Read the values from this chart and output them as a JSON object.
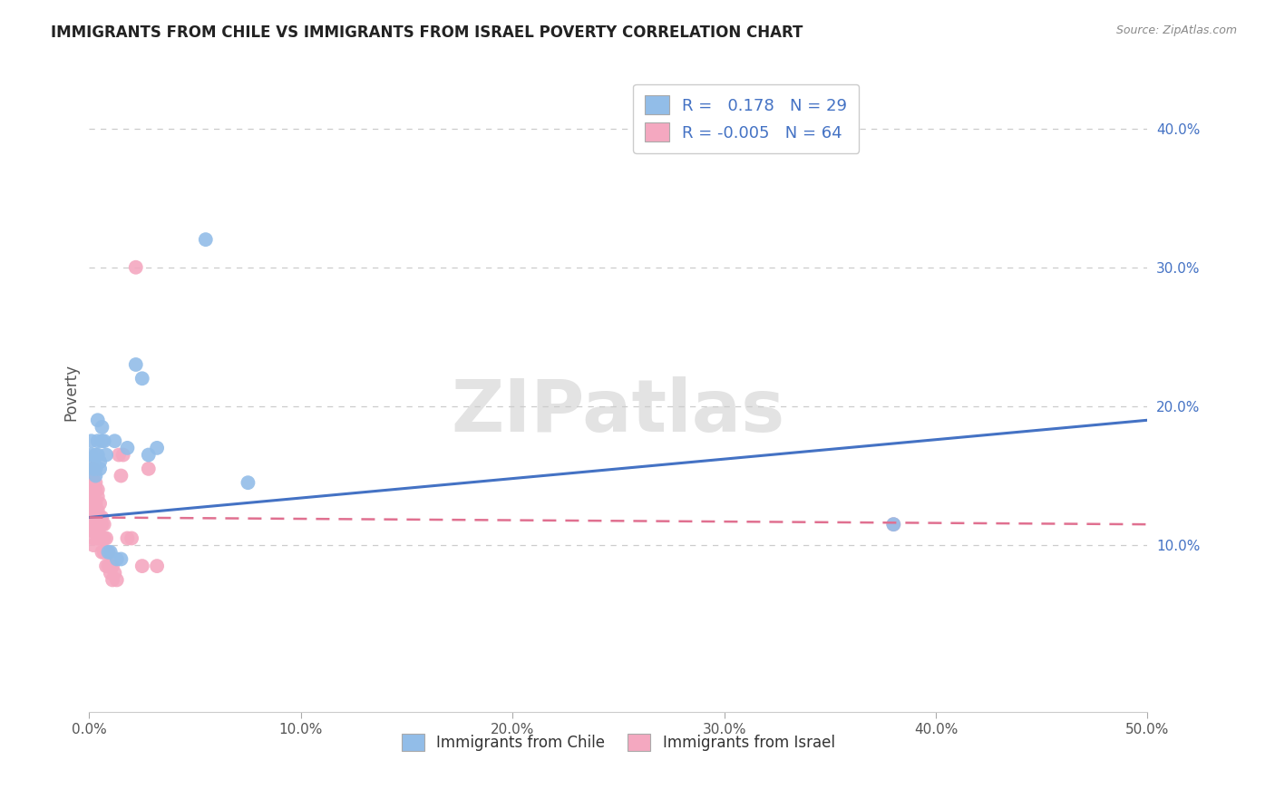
{
  "title": "IMMIGRANTS FROM CHILE VS IMMIGRANTS FROM ISRAEL POVERTY CORRELATION CHART",
  "source": "Source: ZipAtlas.com",
  "xlabel": "",
  "ylabel": "Poverty",
  "xlim": [
    0,
    0.5
  ],
  "ylim": [
    -0.02,
    0.44
  ],
  "xtick_positions": [
    0.0,
    0.1,
    0.2,
    0.3,
    0.4,
    0.5
  ],
  "xtick_labels": [
    "0.0%",
    "10.0%",
    "20.0%",
    "30.0%",
    "40.0%",
    "50.0%"
  ],
  "ytick_vals": [
    0.1,
    0.2,
    0.3,
    0.4
  ],
  "chile_color": "#92BDE8",
  "israel_color": "#F4A8C0",
  "chile_line_color": "#4472C4",
  "israel_line_color": "#E07090",
  "chile_R": 0.178,
  "chile_N": 29,
  "israel_R": -0.005,
  "israel_N": 64,
  "background_color": "#FFFFFF",
  "grid_color": "#CCCCCC",
  "watermark": "ZIPatlas",
  "chile_scatter_x": [
    0.001,
    0.001,
    0.002,
    0.002,
    0.003,
    0.003,
    0.003,
    0.004,
    0.004,
    0.004,
    0.005,
    0.005,
    0.006,
    0.006,
    0.007,
    0.008,
    0.009,
    0.01,
    0.012,
    0.013,
    0.015,
    0.018,
    0.022,
    0.025,
    0.028,
    0.032,
    0.055,
    0.075,
    0.38
  ],
  "chile_scatter_y": [
    0.175,
    0.165,
    0.16,
    0.155,
    0.165,
    0.155,
    0.15,
    0.175,
    0.165,
    0.19,
    0.16,
    0.155,
    0.185,
    0.175,
    0.175,
    0.165,
    0.095,
    0.095,
    0.175,
    0.09,
    0.09,
    0.17,
    0.23,
    0.22,
    0.165,
    0.17,
    0.32,
    0.145,
    0.115
  ],
  "israel_scatter_x": [
    0.001,
    0.001,
    0.001,
    0.001,
    0.001,
    0.001,
    0.001,
    0.001,
    0.002,
    0.002,
    0.002,
    0.002,
    0.002,
    0.002,
    0.002,
    0.002,
    0.002,
    0.002,
    0.002,
    0.002,
    0.003,
    0.003,
    0.003,
    0.003,
    0.003,
    0.003,
    0.004,
    0.004,
    0.004,
    0.004,
    0.004,
    0.004,
    0.005,
    0.005,
    0.005,
    0.005,
    0.006,
    0.006,
    0.006,
    0.006,
    0.007,
    0.007,
    0.007,
    0.008,
    0.008,
    0.008,
    0.009,
    0.009,
    0.01,
    0.01,
    0.011,
    0.011,
    0.012,
    0.013,
    0.014,
    0.015,
    0.016,
    0.018,
    0.02,
    0.022,
    0.025,
    0.028,
    0.032,
    0.38
  ],
  "israel_scatter_y": [
    0.155,
    0.15,
    0.145,
    0.14,
    0.135,
    0.13,
    0.125,
    0.12,
    0.155,
    0.15,
    0.145,
    0.14,
    0.135,
    0.13,
    0.125,
    0.12,
    0.115,
    0.11,
    0.105,
    0.1,
    0.145,
    0.14,
    0.13,
    0.125,
    0.115,
    0.11,
    0.14,
    0.135,
    0.125,
    0.12,
    0.11,
    0.105,
    0.13,
    0.12,
    0.115,
    0.105,
    0.12,
    0.115,
    0.105,
    0.095,
    0.115,
    0.105,
    0.095,
    0.105,
    0.095,
    0.085,
    0.095,
    0.085,
    0.085,
    0.08,
    0.085,
    0.075,
    0.08,
    0.075,
    0.165,
    0.15,
    0.165,
    0.105,
    0.105,
    0.3,
    0.085,
    0.155,
    0.085,
    0.115
  ],
  "legend_label_chile": "Immigrants from Chile",
  "legend_label_israel": "Immigrants from Israel"
}
